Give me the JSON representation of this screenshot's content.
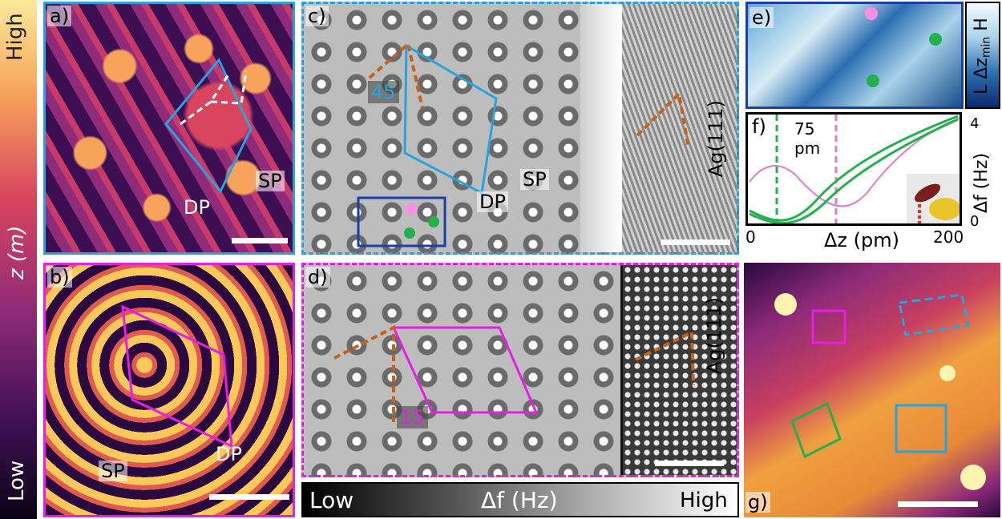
{
  "colorbar_left": {
    "top_label": "High",
    "mid_label": "z (m)",
    "bottom_label": "Low"
  },
  "panel_a": {
    "label": "a)",
    "sp": "SP",
    "dp": "DP"
  },
  "panel_b": {
    "label": "b)",
    "sp": "SP",
    "dp": "DP"
  },
  "panel_c": {
    "label": "c)",
    "angle": "45",
    "sp": "SP",
    "dp": "DP",
    "substrate": "Ag(111)"
  },
  "panel_d": {
    "label": "d)",
    "angle": "15",
    "substrate": "Ag(111)"
  },
  "panel_e": {
    "label": "e)",
    "side_text": "L Δz",
    "side_sub": "min",
    "side_end": "H"
  },
  "panel_f": {
    "label": "f)",
    "distance": "75",
    "distance_unit": "pm",
    "xlabel": "Δz (pm)",
    "ylabel": "Δf (Hz)",
    "x_ticks": [
      "0",
      "200"
    ],
    "y_ticks": [
      "0",
      "4"
    ]
  },
  "panel_g": {
    "label": "g)"
  },
  "colorbar_bottom": {
    "left": "Low",
    "mid": "Δf (Hz)",
    "right": "High"
  },
  "colors": {
    "cyan": "#29a3dc",
    "magenta": "#e61ee6",
    "blue": "#1b3fa8",
    "green": "#22b14c",
    "orange": "#c8621a"
  }
}
